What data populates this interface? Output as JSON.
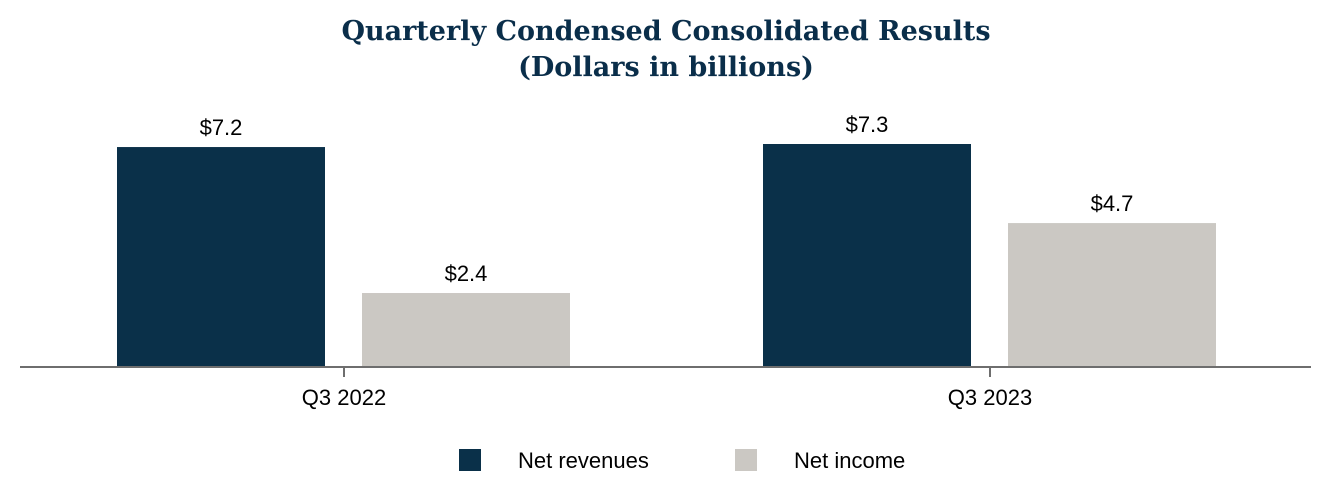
{
  "chart_data": {
    "type": "bar",
    "title": "Quarterly Condensed Consolidated Results",
    "subtitle": "(Dollars in billions)",
    "categories": [
      "Q3 2022",
      "Q3 2023"
    ],
    "series": [
      {
        "name": "Net revenues",
        "color": "#0a3049",
        "values": [
          7.2,
          7.3
        ],
        "labels": [
          "$7.2",
          "$7.3"
        ]
      },
      {
        "name": "Net income",
        "color": "#cbc8c3",
        "values": [
          2.4,
          4.7
        ],
        "labels": [
          "$2.4",
          "$4.7"
        ]
      }
    ],
    "ylim": [
      0,
      7.3
    ],
    "grid": false,
    "legend_position": "bottom"
  }
}
